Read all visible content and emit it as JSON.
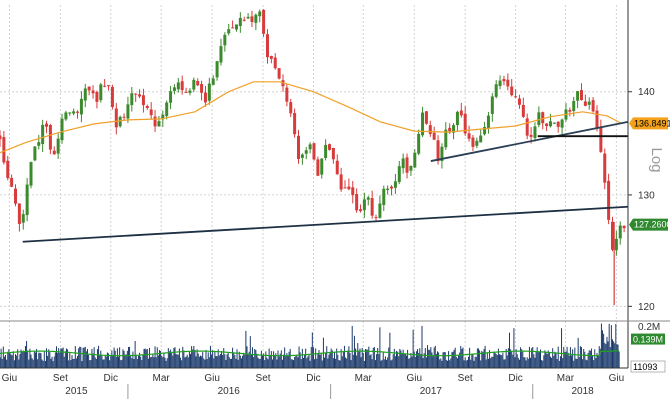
{
  "chart_data": [
    {
      "type": "candlestick",
      "scale_label": "Log",
      "y_scale": "log",
      "ylim": [
        119,
        149
      ],
      "y_ticks": [
        120,
        130,
        140
      ],
      "y_tick_labels": [
        "120",
        "130",
        "140"
      ],
      "x_range": [
        "2015-05-15",
        "2018-06-22"
      ],
      "x_ticks": [
        {
          "date": "2015-06-01",
          "label": "Giu"
        },
        {
          "date": "2015-09-01",
          "label": "Set"
        },
        {
          "date": "2015-12-01",
          "label": "Dic"
        },
        {
          "date": "2016-03-01",
          "label": "Mar"
        },
        {
          "date": "2016-06-01",
          "label": "Giu"
        },
        {
          "date": "2016-09-01",
          "label": "Set"
        },
        {
          "date": "2016-12-01",
          "label": "Dic"
        },
        {
          "date": "2017-03-01",
          "label": "Mar"
        },
        {
          "date": "2017-06-01",
          "label": "Giu"
        },
        {
          "date": "2017-09-01",
          "label": "Set"
        },
        {
          "date": "2017-12-01",
          "label": "Dic"
        },
        {
          "date": "2018-03-01",
          "label": "Mar"
        },
        {
          "date": "2018-06-01",
          "label": "Giu"
        }
      ],
      "years": [
        {
          "label": "2015",
          "date": "2015-09-30"
        },
        {
          "label": "2016",
          "date": "2016-07-01"
        },
        {
          "label": "2017",
          "date": "2017-07-01"
        },
        {
          "label": "2018",
          "date": "2018-04-01"
        }
      ],
      "price_path": [
        [
          "2015-05-15",
          135.6
        ],
        [
          "2015-06-01",
          131.0
        ],
        [
          "2015-06-20",
          126.8
        ],
        [
          "2015-07-10",
          133.5
        ],
        [
          "2015-08-01",
          136.8
        ],
        [
          "2015-08-20",
          134.0
        ],
        [
          "2015-09-10",
          137.8
        ],
        [
          "2015-10-01",
          138.4
        ],
        [
          "2015-10-20",
          140.2
        ],
        [
          "2015-11-05",
          139.0
        ],
        [
          "2015-11-25",
          141.8
        ],
        [
          "2015-12-10",
          136.2
        ],
        [
          "2015-12-25",
          138.0
        ],
        [
          "2016-01-15",
          140.0
        ],
        [
          "2016-02-01",
          138.5
        ],
        [
          "2016-02-20",
          136.9
        ],
        [
          "2016-03-10",
          139.0
        ],
        [
          "2016-03-25",
          140.8
        ],
        [
          "2016-04-15",
          139.5
        ],
        [
          "2016-05-01",
          141.0
        ],
        [
          "2016-05-20",
          139.2
        ],
        [
          "2016-06-05",
          141.5
        ],
        [
          "2016-06-20",
          145.6
        ],
        [
          "2016-07-05",
          147.2
        ],
        [
          "2016-07-25",
          147.0
        ],
        [
          "2016-08-15",
          147.8
        ],
        [
          "2016-08-28",
          148.6
        ],
        [
          "2016-09-05",
          143.6
        ],
        [
          "2016-09-20",
          142.9
        ],
        [
          "2016-10-05",
          141.5
        ],
        [
          "2016-10-20",
          137.5
        ],
        [
          "2016-11-05",
          133.2
        ],
        [
          "2016-11-25",
          134.6
        ],
        [
          "2016-12-10",
          131.8
        ],
        [
          "2016-12-25",
          134.5
        ],
        [
          "2017-01-15",
          131.5
        ],
        [
          "2017-02-01",
          130.2
        ],
        [
          "2017-02-20",
          128.4
        ],
        [
          "2017-03-08",
          130.5
        ],
        [
          "2017-03-18",
          127.7
        ],
        [
          "2017-04-05",
          130.0
        ],
        [
          "2017-04-25",
          131.5
        ],
        [
          "2017-05-10",
          133.0
        ],
        [
          "2017-05-30",
          132.3
        ],
        [
          "2017-06-15",
          138.0
        ],
        [
          "2017-07-01",
          136.0
        ],
        [
          "2017-07-15",
          133.5
        ],
        [
          "2017-08-01",
          136.4
        ],
        [
          "2017-08-20",
          137.8
        ],
        [
          "2017-09-10",
          135.5
        ],
        [
          "2017-09-25",
          134.4
        ],
        [
          "2017-10-10",
          136.8
        ],
        [
          "2017-10-25",
          140.3
        ],
        [
          "2017-11-10",
          141.5
        ],
        [
          "2017-11-25",
          140.2
        ],
        [
          "2017-12-10",
          138.0
        ],
        [
          "2017-12-25",
          135.8
        ],
        [
          "2018-01-15",
          137.6
        ],
        [
          "2018-02-01",
          136.4
        ],
        [
          "2018-02-20",
          136.9
        ],
        [
          "2018-03-10",
          138.6
        ],
        [
          "2018-03-25",
          139.6
        ],
        [
          "2018-04-10",
          138.8
        ],
        [
          "2018-04-25",
          137.4
        ],
        [
          "2018-05-05",
          133.6
        ],
        [
          "2018-05-15",
          129.6
        ],
        [
          "2018-05-22",
          123.8
        ],
        [
          "2018-06-01",
          126.5
        ],
        [
          "2018-06-10",
          127.5
        ],
        [
          "2018-06-18",
          127.26
        ]
      ],
      "volatility": 0.65,
      "moving_average": [
        [
          "2015-05-15",
          134.0
        ],
        [
          "2015-07-01",
          135.0
        ],
        [
          "2015-09-01",
          136.0
        ],
        [
          "2015-11-01",
          136.8
        ],
        [
          "2016-01-01",
          137.2
        ],
        [
          "2016-03-01",
          137.3
        ],
        [
          "2016-05-01",
          138.0
        ],
        [
          "2016-07-01",
          140.0
        ],
        [
          "2016-08-15",
          141.0
        ],
        [
          "2016-10-01",
          141.0
        ],
        [
          "2016-12-01",
          140.0
        ],
        [
          "2017-02-01",
          138.5
        ],
        [
          "2017-04-01",
          137.0
        ],
        [
          "2017-06-01",
          136.1
        ],
        [
          "2017-08-01",
          136.0
        ],
        [
          "2017-10-01",
          136.3
        ],
        [
          "2017-12-01",
          136.6
        ],
        [
          "2018-02-01",
          137.5
        ],
        [
          "2018-04-01",
          138.0
        ],
        [
          "2018-05-15",
          137.6
        ],
        [
          "2018-06-10",
          136.85
        ]
      ],
      "trendlines": [
        {
          "start": [
            "2015-06-25",
            125.7
          ],
          "end": [
            "2018-06-22",
            128.9
          ],
          "color": "#1e3044"
        },
        {
          "start": [
            "2017-07-01",
            133.2
          ],
          "end": [
            "2018-06-22",
            137.0
          ],
          "color": "#2b3f55"
        },
        {
          "start": [
            "2018-01-10",
            135.6
          ],
          "end": [
            "2018-06-22",
            135.6
          ],
          "color": "#111111"
        }
      ],
      "price_tags": [
        {
          "value": 136.8491,
          "label": "136.8491",
          "fill": "#f5a21b",
          "text_color": "#000000"
        },
        {
          "value": 127.26,
          "label": "127.2600",
          "fill": "#2f8a2f",
          "text_color": "#ffffff"
        }
      ],
      "volume_panel": {
        "tick_labels": [
          "0.2M",
          "0.139M",
          "11093"
        ],
        "tags": [
          {
            "label": "0.139M",
            "fill": "#2f8a2f",
            "text_color": "#ffffff"
          },
          {
            "label": "11093",
            "fill": "#ffffff",
            "text_color": "#000000"
          }
        ],
        "bar_color": "#1a3a6b",
        "avg_line_color": "#1fa11f",
        "base_volume_m": 0.075
      },
      "colors": {
        "candle_up": "#3c8a2e",
        "candle_down": "#d83b3b",
        "moving_average": "#f0a028",
        "grid": "#d3d3d3"
      },
      "grid": true
    }
  ]
}
